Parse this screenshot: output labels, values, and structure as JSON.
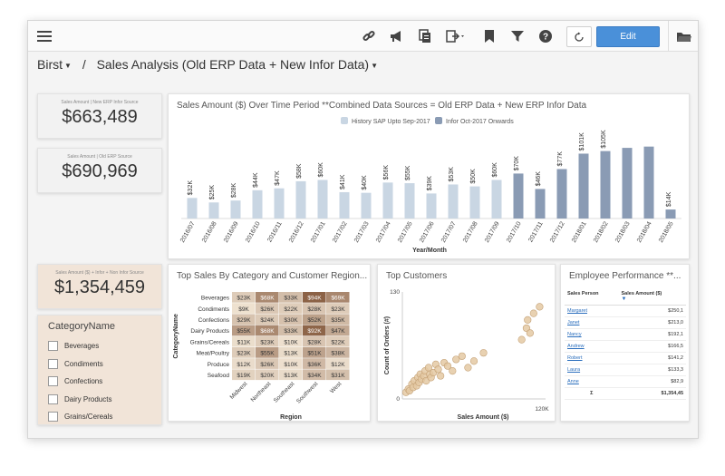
{
  "toolbar": {
    "edit_label": "Edit"
  },
  "breadcrumb": {
    "root": "Birst",
    "separator": "/",
    "page": "Sales Analysis (Old ERP Data + New Infor Data)"
  },
  "kpis": [
    {
      "label": "Sales Amount | New ERP Infor Source",
      "value": "$663,489"
    },
    {
      "label": "Sales Amount | Old ERP Source",
      "value": "$690,969"
    },
    {
      "label": "Sales Amount ($) + Infor + Non Infor Source",
      "value": "$1,354,459"
    }
  ],
  "bar_panel": {
    "title": "Sales Amount ($) Over Time Period **Combined Data Sources = Old ERP Data + New ERP Infor Data"
  },
  "heat_panel": {
    "title": "Top Sales By Category and Customer Region..."
  },
  "scatter_panel": {
    "title": "Top Customers"
  },
  "employee_panel": {
    "title": "Employee Performance **...",
    "headers": [
      "Sales Person",
      "Sales Amount ($)"
    ],
    "rows": [
      {
        "name": "Margaret",
        "amount": "$250,1"
      },
      {
        "name": "Janet",
        "amount": "$213,0"
      },
      {
        "name": "Nancy",
        "amount": "$192,1"
      },
      {
        "name": "Andrew",
        "amount": "$166,5"
      },
      {
        "name": "Robert",
        "amount": "$141,2"
      },
      {
        "name": "Laura",
        "amount": "$133,3"
      },
      {
        "name": "Anne",
        "amount": "$82,9"
      }
    ],
    "total_symbol": "Σ",
    "total": "$1,354,45"
  },
  "filter": {
    "title": "CategoryName",
    "items": [
      "Beverages",
      "Condiments",
      "Confections",
      "Dairy Products",
      "Grains/Cereals"
    ]
  },
  "chart_data": [
    {
      "type": "bar",
      "title": "Sales Amount ($) Over Time Period **Combined Data Sources = Old ERP Data + New ERP Infor Data",
      "xlabel": "Year/Month",
      "ylabel": "",
      "categories": [
        "2016/07",
        "2016/08",
        "2016/09",
        "2016/10",
        "2016/11",
        "2016/12",
        "2017/01",
        "2017/02",
        "2017/03",
        "2017/04",
        "2017/05",
        "2017/06",
        "2017/07",
        "2017/08",
        "2017/09",
        "2017/10",
        "2017/11",
        "2017/12",
        "2018/01",
        "2018/02",
        "2018/03",
        "2018/04",
        "2018/05"
      ],
      "values": [
        32,
        25,
        28,
        44,
        47,
        58,
        60,
        41,
        40,
        56,
        55,
        39,
        53,
        50,
        60,
        70,
        46,
        77,
        101,
        105,
        110,
        112,
        14
      ],
      "data_labels": [
        "$32K",
        "$25K",
        "$28K",
        "$44K",
        "$47K",
        "$58K",
        "$60K",
        "$41K",
        "$40K",
        "$56K",
        "$55K",
        "$39K",
        "$53K",
        "$50K",
        "$60K",
        "$70K",
        "$46K",
        "$77K",
        "$101K",
        "$105K",
        "",
        "",
        "$14K"
      ],
      "source": [
        "History",
        "History",
        "History",
        "History",
        "History",
        "History",
        "History",
        "History",
        "History",
        "History",
        "History",
        "History",
        "History",
        "History",
        "History",
        "Infor",
        "Infor",
        "Infor",
        "Infor",
        "Infor",
        "Infor",
        "Infor",
        "Infor"
      ],
      "legend": [
        {
          "name": "History SAP Upto Sep-2017",
          "color": "#c9d6e3"
        },
        {
          "name": "Infor Oct-2017 Onwards",
          "color": "#8a9bb4"
        }
      ],
      "legend_position": "top-center",
      "ylim": [
        0,
        120
      ]
    },
    {
      "type": "heatmap",
      "title": "Top Sales By Category and Customer Region...",
      "xlabel": "Region",
      "ylabel": "CategoryName",
      "x": [
        "Midwest",
        "Northeast",
        "Southeast",
        "Southwest",
        "West"
      ],
      "y": [
        "Beverages",
        "Condiments",
        "Confections",
        "Dairy Products",
        "Grains/Cereals",
        "Meat/Poultry",
        "Produce",
        "Seafood"
      ],
      "values": [
        [
          23,
          68,
          33,
          94,
          69
        ],
        [
          9,
          26,
          22,
          28,
          23
        ],
        [
          29,
          24,
          30,
          52,
          35
        ],
        [
          55,
          68,
          33,
          92,
          47
        ],
        [
          11,
          23,
          10,
          28,
          22
        ],
        [
          23,
          55,
          13,
          51,
          38
        ],
        [
          12,
          26,
          10,
          36,
          12
        ],
        [
          19,
          20,
          13,
          34,
          31
        ]
      ],
      "labels": [
        [
          "$23K",
          "$68K",
          "$33K",
          "$94K",
          "$69K"
        ],
        [
          "$9K",
          "$26K",
          "$22K",
          "$28K",
          "$23K"
        ],
        [
          "$29K",
          "$24K",
          "$30K",
          "$52K",
          "$35K"
        ],
        [
          "$55K",
          "$68K",
          "$33K",
          "$92K",
          "$47K"
        ],
        [
          "$11K",
          "$23K",
          "$10K",
          "$28K",
          "$22K"
        ],
        [
          "$23K",
          "$55K",
          "$13K",
          "$51K",
          "$38K"
        ],
        [
          "$12K",
          "$26K",
          "$10K",
          "$36K",
          "$12K"
        ],
        [
          "$19K",
          "$20K",
          "$13K",
          "$34K",
          "$31K"
        ]
      ]
    },
    {
      "type": "scatter",
      "title": "Top Customers",
      "xlabel": "Sales Amount ($)",
      "ylabel": "Count of Orders (#)",
      "xticks": [
        "0",
        "120K"
      ],
      "yticks": [
        "0",
        "130"
      ],
      "xlim": [
        0,
        120000
      ],
      "ylim": [
        0,
        130
      ],
      "x": [
        3000,
        5000,
        6000,
        8000,
        9000,
        10000,
        12000,
        13000,
        14000,
        15000,
        16000,
        18000,
        19000,
        20000,
        22000,
        23000,
        24000,
        26000,
        28000,
        30000,
        32000,
        35000,
        38000,
        42000,
        45000,
        50000,
        55000,
        60000,
        68000,
        100000,
        104000,
        105000,
        107000,
        110000,
        115000
      ],
      "y": [
        8,
        12,
        10,
        18,
        14,
        22,
        16,
        26,
        20,
        30,
        24,
        28,
        34,
        22,
        38,
        30,
        26,
        32,
        42,
        36,
        28,
        44,
        40,
        34,
        48,
        52,
        38,
        46,
        56,
        72,
        86,
        96,
        80,
        104,
        112
      ]
    }
  ]
}
